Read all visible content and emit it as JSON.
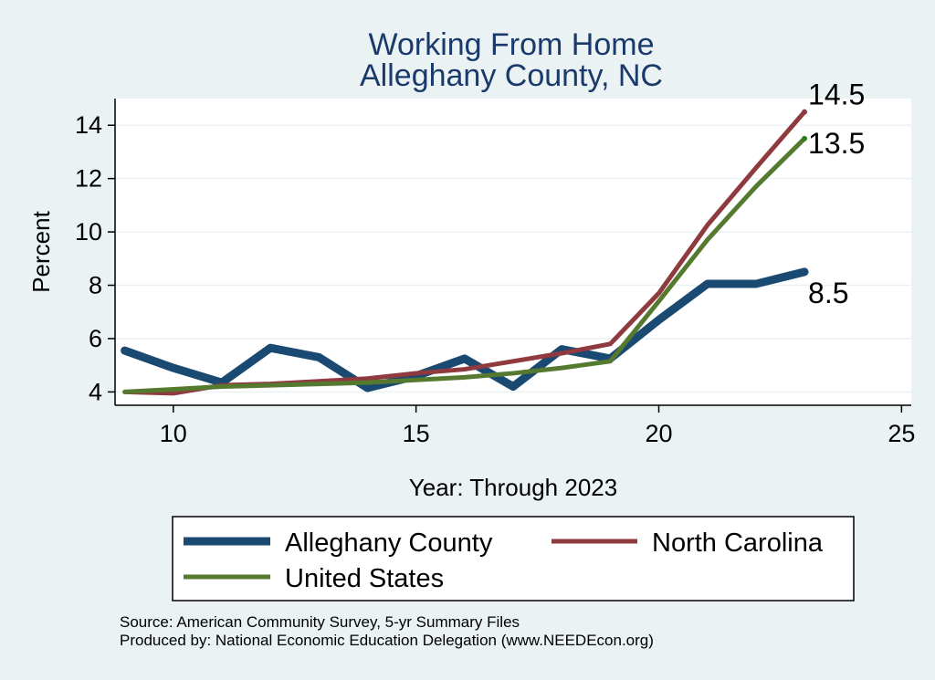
{
  "chart_data": {
    "type": "line",
    "title": [
      "Working From Home",
      "Alleghany County, NC"
    ],
    "xlabel": "Year: Through 2023",
    "ylabel": "Percent",
    "xlim": [
      8.8,
      25.2
    ],
    "ylim": [
      3.5,
      15
    ],
    "xticks": [
      10,
      15,
      20,
      25
    ],
    "yticks": [
      4,
      6,
      8,
      10,
      12,
      14
    ],
    "grid": "horizontal",
    "legend_position": "bottom",
    "series": [
      {
        "name": "Alleghany County",
        "color": "#1a4a72",
        "width": 9,
        "x": [
          9,
          10,
          11,
          12,
          13,
          14,
          15,
          16,
          17,
          18,
          19,
          20,
          21,
          22,
          23
        ],
        "y": [
          5.55,
          4.9,
          4.35,
          5.65,
          5.3,
          4.15,
          4.6,
          5.25,
          4.2,
          5.6,
          5.25,
          6.7,
          8.05,
          8.05,
          8.5
        ]
      },
      {
        "name": "North Carolina",
        "color": "#8f3a3f",
        "width": 5,
        "x": [
          9,
          10,
          11,
          12,
          13,
          14,
          15,
          16,
          17,
          18,
          19,
          20,
          21,
          22,
          23
        ],
        "y": [
          4.0,
          3.95,
          4.25,
          4.3,
          4.4,
          4.5,
          4.7,
          4.85,
          5.15,
          5.45,
          5.8,
          7.7,
          10.25,
          12.4,
          14.5
        ]
      },
      {
        "name": "United States",
        "color": "#557a2f",
        "width": 5,
        "x": [
          9,
          10,
          11,
          12,
          13,
          14,
          15,
          16,
          17,
          18,
          19,
          20,
          21,
          22,
          23
        ],
        "y": [
          4.0,
          4.1,
          4.2,
          4.25,
          4.3,
          4.35,
          4.45,
          4.55,
          4.7,
          4.9,
          5.15,
          7.4,
          9.7,
          11.7,
          13.5
        ]
      }
    ],
    "end_labels": [
      {
        "text": "14.5",
        "x": 23,
        "y": 14.5,
        "dot_color": "#8f3a3f"
      },
      {
        "text": "13.5",
        "x": 23,
        "y": 13.5,
        "dot_color": "#2e7d1e"
      },
      {
        "text": "8.5",
        "x": 23,
        "y": 8.5,
        "dot_color": "#1a4a72"
      }
    ]
  },
  "legend": {
    "items": [
      {
        "label": "Alleghany County"
      },
      {
        "label": "North Carolina"
      },
      {
        "label": "United States"
      }
    ]
  },
  "source": {
    "line1": "Source: American Community Survey, 5-yr Summary Files",
    "line2": "Produced by: National Economic Education Delegation (www.NEEDEcon.org)"
  }
}
